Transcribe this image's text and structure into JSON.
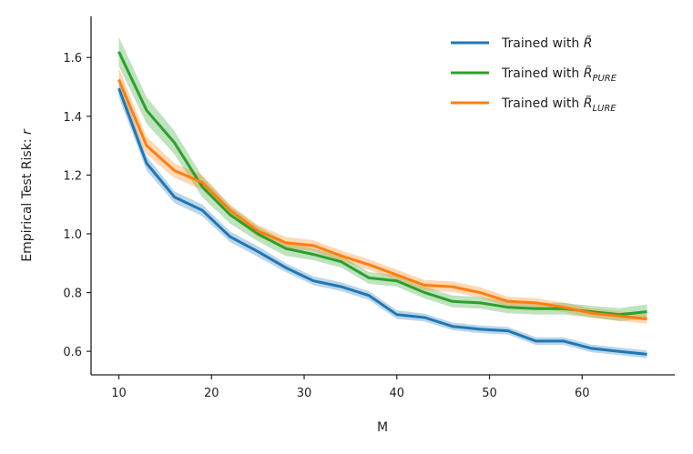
{
  "chart_data": {
    "type": "line",
    "title": "",
    "xlabel": "M",
    "ylabel_text": "Empirical Test Risk: ",
    "ylabel_var": "r",
    "xlim": [
      7,
      70
    ],
    "ylim": [
      0.52,
      1.74
    ],
    "xticks": [
      10,
      20,
      30,
      40,
      50,
      60
    ],
    "yticks": [
      0.6,
      0.8,
      1.0,
      1.2,
      1.4,
      1.6
    ],
    "ytick_labels": [
      "0.6",
      "0.8",
      "1.0",
      "1.2",
      "1.4",
      "1.6"
    ],
    "legend_position": "top-right",
    "x": [
      10,
      13,
      16,
      19,
      22,
      25,
      28,
      31,
      34,
      37,
      40,
      43,
      46,
      49,
      52,
      55,
      58,
      61,
      64,
      67
    ],
    "series": [
      {
        "name": "Trained with R̃",
        "legend_prefix": "Trained with ",
        "legend_var": "R̃",
        "legend_sub": "",
        "color": "#1f77b4",
        "values": [
          1.495,
          1.24,
          1.125,
          1.08,
          0.99,
          0.94,
          0.885,
          0.84,
          0.82,
          0.79,
          0.725,
          0.715,
          0.685,
          0.675,
          0.67,
          0.635,
          0.635,
          0.61,
          0.6,
          0.59
        ],
        "band": [
          0.03,
          0.025,
          0.02,
          0.02,
          0.018,
          0.018,
          0.015,
          0.015,
          0.015,
          0.015,
          0.015,
          0.013,
          0.013,
          0.013,
          0.013,
          0.013,
          0.013,
          0.013,
          0.013,
          0.013
        ]
      },
      {
        "name": "Trained with R̃_PURE",
        "legend_prefix": "Trained with ",
        "legend_var": "R̃",
        "legend_sub": "PURE",
        "color": "#2ca02c",
        "values": [
          1.62,
          1.42,
          1.31,
          1.16,
          1.065,
          1.0,
          0.95,
          0.93,
          0.905,
          0.85,
          0.84,
          0.8,
          0.77,
          0.765,
          0.75,
          0.745,
          0.745,
          0.735,
          0.725,
          0.735
        ],
        "band": [
          0.05,
          0.045,
          0.04,
          0.035,
          0.03,
          0.025,
          0.025,
          0.02,
          0.02,
          0.02,
          0.02,
          0.02,
          0.02,
          0.02,
          0.02,
          0.02,
          0.02,
          0.02,
          0.022,
          0.025
        ]
      },
      {
        "name": "Trained with R̃_LURE",
        "legend_prefix": "Trained with ",
        "legend_var": "R̃",
        "legend_sub": "LURE",
        "color": "#ff7f0e",
        "values": [
          1.525,
          1.3,
          1.215,
          1.175,
          1.08,
          1.01,
          0.97,
          0.96,
          0.925,
          0.895,
          0.86,
          0.825,
          0.82,
          0.8,
          0.77,
          0.765,
          0.75,
          0.73,
          0.72,
          0.71
        ],
        "band": [
          0.04,
          0.03,
          0.025,
          0.025,
          0.02,
          0.02,
          0.02,
          0.018,
          0.018,
          0.018,
          0.018,
          0.018,
          0.018,
          0.018,
          0.016,
          0.016,
          0.016,
          0.016,
          0.016,
          0.016
        ]
      }
    ]
  }
}
